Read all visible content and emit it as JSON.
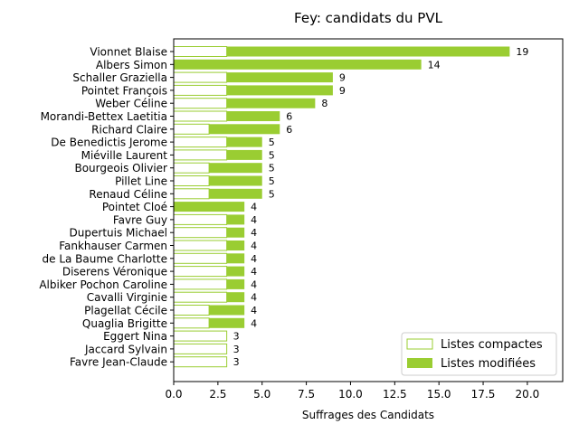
{
  "chart_data": {
    "type": "bar",
    "orientation": "horizontal",
    "stacked": true,
    "title": "Fey: candidats du PVL",
    "xlabel": "Suffrages des Candidats",
    "ylabel": "",
    "xlim": [
      0,
      22
    ],
    "xticks": [
      "0.0",
      "2.5",
      "5.0",
      "7.5",
      "10.0",
      "12.5",
      "15.0",
      "17.5",
      "20.0"
    ],
    "grid": false,
    "legend_position": "bottom-right",
    "colors": {
      "compactes": "#9acd32",
      "modifiees": "#9acd32"
    },
    "categories": [
      "Vionnet Blaise",
      "Albers Simon",
      "Schaller Graziella",
      "Pointet François",
      "Weber Céline",
      "Morandi-Bettex Laetitia",
      "Richard Claire",
      "De Benedictis Jerome",
      "Miéville Laurent",
      "Bourgeois Olivier",
      "Pillet Line",
      "Renaud Céline",
      "Pointet Cloé",
      "Favre Guy",
      "Dupertuis Michael",
      "Fankhauser Carmen",
      "de La Baume Charlotte",
      "Diserens Véronique",
      "Albiker Pochon Caroline",
      "Cavalli Virginie",
      "Plagellat Cécile",
      "Quaglia Brigitte",
      "Eggert Nina",
      "Jaccard Sylvain",
      "Favre Jean-Claude"
    ],
    "series": [
      {
        "name": "Listes compactes",
        "values": [
          3,
          0,
          3,
          3,
          3,
          3,
          2,
          3,
          3,
          2,
          2,
          2,
          0,
          3,
          3,
          3,
          3,
          3,
          3,
          3,
          2,
          2,
          3,
          3,
          3
        ]
      },
      {
        "name": "Listes modifiées",
        "values": [
          16,
          14,
          6,
          6,
          5,
          3,
          4,
          2,
          2,
          3,
          3,
          3,
          4,
          1,
          1,
          1,
          1,
          1,
          1,
          1,
          2,
          2,
          0,
          0,
          0
        ]
      }
    ],
    "totals": [
      "19",
      "14",
      "9",
      "9",
      "8",
      "6",
      "6",
      "5",
      "5",
      "5",
      "5",
      "5",
      "4",
      "4",
      "4",
      "4",
      "4",
      "4",
      "4",
      "4",
      "4",
      "4",
      "3",
      "3",
      "3"
    ]
  }
}
